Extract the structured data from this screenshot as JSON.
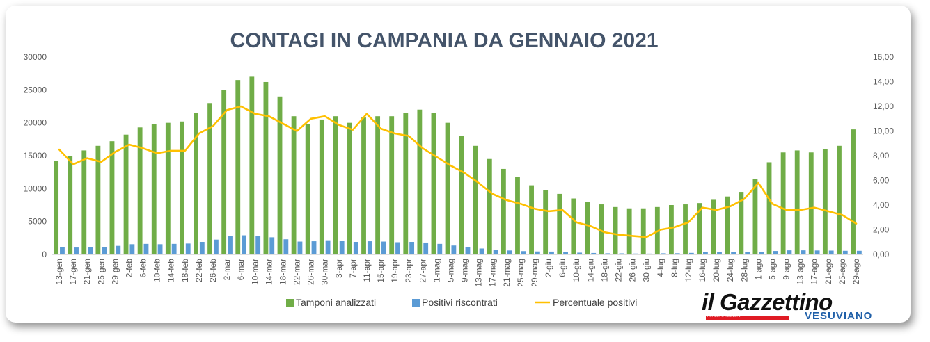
{
  "chart_data": {
    "type": "bar",
    "title": "CONTAGI IN CAMPANIA DA GENNAIO 2021",
    "xlabel": "",
    "ylabel": "",
    "ylim": [
      0,
      30000
    ],
    "y2lim": [
      0,
      16
    ],
    "yticks": [
      "0",
      "5000",
      "10000",
      "15000",
      "20000",
      "25000",
      "30000"
    ],
    "y2ticks": [
      "0,00",
      "2,00",
      "4,00",
      "6,00",
      "8,00",
      "10,00",
      "12,00",
      "14,00",
      "16,00"
    ],
    "categories": [
      "13-gen",
      "17-gen",
      "21-gen",
      "25-gen",
      "29-gen",
      "2-feb",
      "6-feb",
      "10-feb",
      "14-feb",
      "18-feb",
      "22-feb",
      "26-feb",
      "2-mar",
      "6-mar",
      "10-mar",
      "14-mar",
      "18-mar",
      "22-mar",
      "26-mar",
      "30-mar",
      "3-apr",
      "7-apr",
      "11-apr",
      "15-apr",
      "19-apr",
      "23-apr",
      "27-apr",
      "1-mag",
      "5-mag",
      "9-mag",
      "13-mag",
      "17-mag",
      "21-mag",
      "25-mag",
      "29-mag",
      "2-giu",
      "6-giu",
      "10-giu",
      "14-giu",
      "18-giu",
      "22-giu",
      "26-giu",
      "30-giu",
      "4-lug",
      "8-lug",
      "12-lug",
      "16-lug",
      "20-lug",
      "24-lug",
      "28-lug",
      "1-ago",
      "5-ago",
      "9-ago",
      "13-ago",
      "17-ago",
      "21-ago",
      "25-ago",
      "29-ago"
    ],
    "series": [
      {
        "name": "Tamponi analizzati",
        "kind": "bar",
        "axis": "left",
        "color": "#70ad47",
        "values": [
          14200,
          15000,
          15800,
          16500,
          17200,
          18200,
          19300,
          19800,
          20000,
          20200,
          21500,
          23000,
          25000,
          26500,
          27000,
          26200,
          24000,
          21000,
          19800,
          20500,
          21000,
          20000,
          20800,
          21000,
          21000,
          21500,
          22000,
          21500,
          20000,
          18000,
          16500,
          14500,
          13000,
          11800,
          10500,
          9800,
          9200,
          8500,
          8000,
          7600,
          7200,
          7000,
          7000,
          7200,
          7500,
          7600,
          7800,
          8300,
          8800,
          9500,
          11500,
          14000,
          15500,
          15800,
          15500,
          16000,
          16500,
          19000
        ]
      },
      {
        "name": "Positivi riscontrati",
        "kind": "bar",
        "axis": "left",
        "color": "#5b9bd5",
        "values": [
          1150,
          1050,
          1100,
          1150,
          1300,
          1550,
          1600,
          1550,
          1600,
          1650,
          1900,
          2250,
          2800,
          2900,
          2800,
          2600,
          2300,
          1950,
          2000,
          2150,
          2050,
          1900,
          2000,
          1950,
          1850,
          1900,
          1800,
          1600,
          1350,
          1100,
          900,
          700,
          600,
          500,
          450,
          430,
          380,
          270,
          220,
          170,
          160,
          130,
          120,
          170,
          180,
          230,
          330,
          330,
          360,
          380,
          420,
          520,
          620,
          620,
          600,
          580,
          550,
          550
        ]
      },
      {
        "name": "Percentuale positivi",
        "kind": "line",
        "axis": "right",
        "color": "#ffc000",
        "values": [
          8.5,
          7.3,
          7.8,
          7.5,
          8.3,
          8.9,
          8.6,
          8.2,
          8.4,
          8.4,
          9.8,
          10.4,
          11.7,
          12.0,
          11.4,
          11.2,
          10.6,
          10.0,
          11.0,
          11.2,
          10.5,
          10.1,
          11.4,
          10.2,
          9.8,
          9.6,
          8.6,
          7.9,
          7.2,
          6.6,
          5.8,
          4.9,
          4.4,
          4.1,
          3.7,
          3.5,
          3.6,
          2.6,
          2.3,
          1.8,
          1.6,
          1.5,
          1.4,
          2.0,
          2.2,
          2.6,
          3.8,
          3.6,
          3.9,
          4.5,
          5.8,
          4.1,
          3.6,
          3.6,
          3.8,
          3.5,
          3.2,
          2.5
        ]
      }
    ],
    "legend": "bottom",
    "grid": false
  },
  "logo": {
    "main": "il Gazzettino",
    "sub": "FONDATO NEL 1971",
    "tagline": "VESUVIANO"
  }
}
